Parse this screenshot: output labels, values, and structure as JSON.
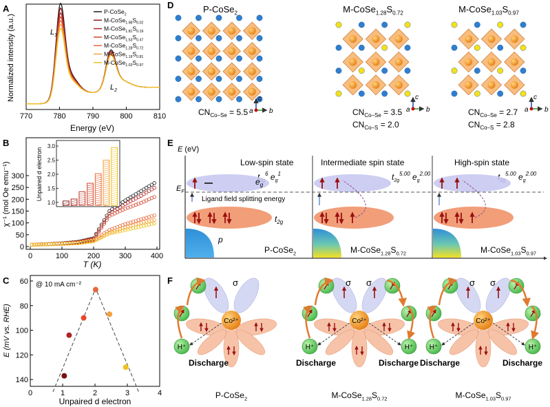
{
  "panels": {
    "A": "A",
    "B": "B",
    "C": "C",
    "D": "D",
    "E": "E",
    "F": "F"
  },
  "panelA": {
    "ylabel": "Normalized intensity (a.u.)",
    "xlabel": "Energy (eV)",
    "xticks": [
      "770",
      "780",
      "790",
      "800",
      "810"
    ],
    "peak_L3": "L3",
    "peak_L2": "L2",
    "legend": [
      "P-CoSe2",
      "M-CoSe1.98S0.02",
      "M-CoSe1.81S0.19",
      "M-CoSe1.53S0.47",
      "M-CoSe1.28S0.72",
      "M-CoSe1.19S0.81",
      "M-CoSe1.03S0.97"
    ]
  },
  "panelB": {
    "ylabel": "χ⁻¹ (mol Oe emu⁻¹)",
    "xlabel": "T (K)",
    "xticks": [
      "0",
      "100",
      "200",
      "300",
      "400"
    ],
    "yticks": [
      "0",
      "50",
      "100",
      "150",
      "200",
      "250",
      "300"
    ],
    "inset_ylabel": "Unpaired d electron",
    "inset_yticks": [
      "1.0",
      "1.5",
      "2.0",
      "2.5",
      "3.0"
    ]
  },
  "panelC": {
    "ylabel": "E (mV vs. RHE)",
    "xlabel": "Unpaired d electron",
    "xticks": [
      "0",
      "1",
      "2",
      "3",
      "4"
    ],
    "yticks": [
      "60",
      "80",
      "100",
      "120",
      "140"
    ],
    "annotation": "@ 10 mA cm⁻²"
  },
  "panelD": {
    "structures": [
      {
        "name": "P-CoSe2",
        "cn1": "CN",
        "cn1_sub": "Co–Se",
        "cn1_val": "= 5.5",
        "cn2": "",
        "cn2_sub": "",
        "cn2_val": ""
      },
      {
        "name": "M-CoSe1.28S0.72",
        "cn1": "CN",
        "cn1_sub": "Co–Se",
        "cn1_val": "= 3.5",
        "cn2": "CN",
        "cn2_sub": "Co–S",
        "cn2_val": "= 2.0"
      },
      {
        "name": "M-CoSe1.03S0.97",
        "cn1": "CN",
        "cn1_sub": "Co–Se",
        "cn1_val": "= 2.7",
        "cn2": "CN",
        "cn2_sub": "Co–S",
        "cn2_val": "= 2.8"
      }
    ],
    "axis_labels": {
      "a": "a",
      "b": "b",
      "c": "c"
    }
  },
  "panelE": {
    "yaxis": "E (eV)",
    "fermi": "EF",
    "states": [
      "Low-spin state",
      "Intermediate spin state",
      "High-spin state"
    ],
    "configs": [
      {
        "t": "t",
        "t_sub": "2g",
        "t_sup": "6",
        "e": "e",
        "e_sub": "g",
        "e_sup": "1"
      },
      {
        "t": "t",
        "t_sub": "2g",
        "t_sup": "5.00",
        "e": "e",
        "e_sub": "g",
        "e_sup": "2.00"
      },
      {
        "t": "t",
        "t_sub": "2g",
        "t_sup": "5.00",
        "e": "e",
        "e_sub": "g",
        "e_sup": "2.00"
      }
    ],
    "eg": "eg",
    "t2g": "t2g",
    "p": "p",
    "splitting": "Ligand field splitting energy",
    "names": [
      "P-CoSe2",
      "M-CoSe1.28S0.72",
      "M-CoSe1.03S0.97"
    ]
  },
  "panelF": {
    "sigma": "σ",
    "center": "Co²⁺",
    "hplus": "H⁺",
    "discharge": "Discharge",
    "names": [
      "P-CoSe2",
      "M-CoSe1.28S0.72",
      "M-CoSe1.03S0.97"
    ]
  },
  "chart_data": [
    {
      "type": "line",
      "title": "",
      "xlabel": "Energy (eV)",
      "ylabel": "Normalized intensity (a.u.)",
      "xlim": [
        770,
        810
      ],
      "series": [
        {
          "name": "P-CoSe2",
          "color": "#1a1a1a",
          "peak_L3": 1.0,
          "peak_L2": 0.42
        },
        {
          "name": "M-CoSe1.98S0.02",
          "color": "#8b1a1a",
          "peak_L3": 0.95,
          "peak_L2": 0.4
        },
        {
          "name": "M-CoSe1.81S0.19",
          "color": "#b22222",
          "peak_L3": 0.9,
          "peak_L2": 0.4
        },
        {
          "name": "M-CoSe1.53S0.47",
          "color": "#d2452b",
          "peak_L3": 0.86,
          "peak_L2": 0.38
        },
        {
          "name": "M-CoSe1.28S0.72",
          "color": "#e8663a",
          "peak_L3": 0.82,
          "peak_L2": 0.38
        },
        {
          "name": "M-CoSe1.19S0.81",
          "color": "#f2a03d",
          "peak_L3": 0.78,
          "peak_L2": 0.36
        },
        {
          "name": "M-CoSe1.03S0.97",
          "color": "#f0c020",
          "peak_L3": 0.74,
          "peak_L2": 0.36
        }
      ]
    },
    {
      "type": "scatter",
      "xlabel": "T (K)",
      "ylabel": "χ⁻¹ (mol Oe emu⁻¹)",
      "xlim": [
        0,
        400
      ],
      "ylim": [
        0,
        350
      ],
      "series": [
        {
          "color": "#1a1a1a",
          "x": [
            5,
            50,
            100,
            150,
            200,
            250,
            300,
            350,
            400
          ],
          "y": [
            8,
            10,
            14,
            20,
            35,
            150,
            195,
            235,
            275
          ]
        },
        {
          "color": "#b22222",
          "x": [
            5,
            50,
            100,
            150,
            200,
            250,
            300,
            350,
            400
          ],
          "y": [
            8,
            10,
            13,
            18,
            32,
            140,
            180,
            215,
            255
          ]
        },
        {
          "color": "#d2452b",
          "x": [
            5,
            50,
            100,
            150,
            200,
            250,
            300,
            350,
            400
          ],
          "y": [
            8,
            10,
            13,
            18,
            30,
            130,
            160,
            185,
            215
          ]
        },
        {
          "color": "#e8663a",
          "x": [
            5,
            50,
            100,
            150,
            200,
            250,
            300,
            350,
            400
          ],
          "y": [
            8,
            10,
            12,
            16,
            28,
            70,
            95,
            115,
            135
          ]
        },
        {
          "color": "#f2a03d",
          "x": [
            5,
            50,
            100,
            150,
            200,
            250,
            300,
            350,
            400
          ],
          "y": [
            8,
            9,
            12,
            15,
            25,
            60,
            80,
            100,
            115
          ]
        },
        {
          "color": "#f0c020",
          "x": [
            5,
            50,
            100,
            150,
            200,
            250,
            300,
            350,
            400
          ],
          "y": [
            7,
            9,
            11,
            14,
            22,
            55,
            70,
            85,
            100
          ]
        }
      ],
      "inset": {
        "type": "bar",
        "ylabel": "Unpaired d electron",
        "ylim": [
          0.9,
          3.1
        ],
        "values": [
          1.05,
          1.12,
          1.38,
          1.68,
          2.02,
          2.5,
          2.95
        ],
        "colors": [
          "#8b1a1a",
          "#b22222",
          "#c0392b",
          "#d2452b",
          "#e8663a",
          "#f2a03d",
          "#f0c020"
        ]
      }
    },
    {
      "type": "scatter",
      "xlabel": "Unpaired d electron",
      "ylabel": "E (mV vs. RHE)",
      "xlim": [
        0,
        4
      ],
      "ylim": [
        60,
        150
      ],
      "y_inverted": true,
      "points": [
        {
          "x": 1.05,
          "y": 137,
          "color": "#7a1010"
        },
        {
          "x": 1.2,
          "y": 104,
          "color": "#b22222"
        },
        {
          "x": 1.65,
          "y": 90,
          "color": "#e8452b"
        },
        {
          "x": 2.02,
          "y": 67,
          "color": "#e8663a"
        },
        {
          "x": 2.45,
          "y": 87,
          "color": "#f2a03d"
        },
        {
          "x": 2.95,
          "y": 130,
          "color": "#f0c020"
        }
      ]
    }
  ]
}
